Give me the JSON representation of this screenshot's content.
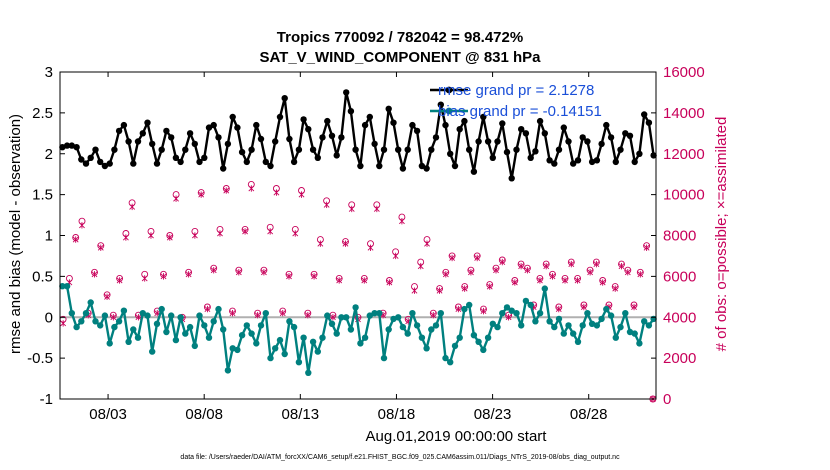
{
  "chart_data": {
    "type": "line",
    "title": "Tropics 770092 / 782042 = 98.472%",
    "subtitle": "SAT_V_WIND_COMPONENT @ 831 hPa",
    "xlabel": "Aug.01,2019 00:00:00 start",
    "ylabel": "rmse and bias (model - observation)",
    "ylabel_right": "# of obs: o=possible; ×=assimilated",
    "footnote": "data file: /Users/raeder/DAI/ATM_forcXX/CAM6_setup/f.e21.FHIST_BGC.f09_025.CAM6assim.011/Diags_NTrS_2019-08/obs_diag_output.nc",
    "x_range_days": [
      0.5,
      31.5
    ],
    "ylim": [
      -1,
      3
    ],
    "ylim_right": [
      0,
      16000
    ],
    "yticks": [
      -1,
      -0.5,
      0,
      0.5,
      1,
      1.5,
      2,
      2.5,
      3
    ],
    "ytick_labels": [
      "-1",
      "-0.5",
      "0",
      "0.5",
      "1",
      "1.5",
      "2",
      "2.5",
      "3"
    ],
    "yticks_right": [
      0,
      2000,
      4000,
      6000,
      8000,
      10000,
      12000,
      14000,
      16000
    ],
    "ytick_labels_right": [
      "0",
      "2000",
      "4000",
      "6000",
      "8000",
      "10000",
      "12000",
      "14000",
      "16000"
    ],
    "xticks_days": [
      3,
      8,
      13,
      18,
      23,
      28
    ],
    "xtick_labels": [
      "08/03",
      "08/08",
      "08/13",
      "08/18",
      "08/23",
      "08/28"
    ],
    "zero_line": 0,
    "colors": {
      "rmse": "#000000",
      "bias": "#00807f",
      "obs": "#c8005a",
      "legend_text": "#1a4fd8",
      "zero_line": "#b0b0b0"
    },
    "legend": [
      {
        "name": "rmse",
        "label": "rmse grand pr = 2.1278"
      },
      {
        "name": "bias",
        "label": "bias grand pr = -0.14151"
      }
    ],
    "obs_count": {
      "name": "obs possible",
      "marker": "o",
      "values": [
        3900,
        5900,
        7900,
        8700,
        4200,
        6200,
        7500,
        5100,
        4100,
        5900,
        8100,
        9600,
        4100,
        6100,
        8200,
        4300,
        6100,
        8000,
        10000,
        4000,
        6200,
        8200,
        10100,
        4500,
        6400,
        8300,
        10300,
        4300,
        6300,
        8300,
        10500,
        4200,
        6300,
        8400,
        10300,
        4300,
        6100,
        8300,
        10200,
        4200,
        6100,
        7800,
        9700,
        4100,
        5900,
        7700,
        9500,
        4000,
        5900,
        7600,
        9500,
        4200,
        5800,
        7200,
        8900,
        3900,
        5500,
        6700,
        7800,
        4200,
        5400,
        6200,
        7000,
        4500,
        5500,
        6300,
        7000,
        4400,
        5600,
        6400,
        6800,
        4100,
        5800,
        6600,
        6400,
        4600,
        5900,
        6600,
        6100,
        4500,
        5900,
        6700,
        5900,
        4600,
        6300,
        6700,
        5800,
        4600,
        5500,
        6600,
        6300,
        4600,
        6200,
        7500,
        0
      ]
    },
    "obs_assim": {
      "name": "obs assimilated",
      "marker": "x",
      "values": [
        3700,
        5700,
        7800,
        8500,
        4100,
        6100,
        7400,
        5000,
        4000,
        5800,
        7900,
        9400,
        4000,
        5900,
        8000,
        4200,
        6000,
        7900,
        9800,
        3900,
        6100,
        8000,
        10000,
        4400,
        6300,
        8100,
        10200,
        4200,
        6200,
        8200,
        10300,
        4100,
        6200,
        8200,
        10100,
        4200,
        6000,
        8100,
        10000,
        4100,
        6000,
        7600,
        9500,
        4000,
        5800,
        7600,
        9300,
        3900,
        5800,
        7400,
        9300,
        4100,
        5700,
        7000,
        8700,
        3800,
        5300,
        6500,
        7600,
        4100,
        5300,
        6100,
        6900,
        4400,
        5400,
        6200,
        6900,
        4300,
        5500,
        6300,
        6700,
        4000,
        5700,
        6500,
        6300,
        4500,
        5800,
        6500,
        6000,
        4400,
        5800,
        6600,
        5800,
        4500,
        6200,
        6600,
        5700,
        4500,
        5400,
        6500,
        6200,
        4500,
        6100,
        7400,
        0
      ]
    },
    "rmse": [
      2.08,
      2.1,
      2.1,
      2.08,
      1.93,
      1.88,
      1.95,
      2.05,
      1.9,
      1.85,
      1.88,
      2.05,
      2.28,
      2.35,
      2.15,
      1.88,
      2.15,
      2.25,
      2.38,
      2.12,
      1.88,
      2.05,
      2.28,
      2.2,
      1.95,
      1.9,
      2.05,
      2.25,
      2.12,
      1.9,
      1.95,
      2.32,
      2.35,
      2.2,
      1.82,
      2.12,
      2.45,
      2.32,
      2.02,
      1.9,
      2.05,
      2.35,
      2.18,
      1.9,
      1.85,
      2.15,
      2.45,
      2.68,
      2.18,
      1.9,
      2.05,
      2.42,
      2.3,
      2.05,
      1.95,
      2.2,
      2.4,
      2.22,
      1.98,
      2.2,
      2.75,
      2.52,
      2.05,
      1.85,
      2.35,
      2.45,
      2.12,
      1.85,
      2.05,
      2.55,
      2.38,
      2.05,
      1.82,
      2.05,
      2.35,
      2.28,
      1.85,
      1.82,
      2.05,
      2.2,
      2.6,
      2.35,
      2.0,
      1.85,
      2.3,
      2.4,
      2.05,
      1.78,
      2.15,
      2.45,
      2.15,
      1.95,
      2.15,
      2.37,
      2.02,
      1.7,
      2.05,
      2.3,
      2.25,
      1.95,
      2.03,
      2.4,
      2.25,
      1.92,
      1.88,
      2.05,
      2.32,
      2.15,
      1.88,
      1.92,
      2.2,
      2.15,
      1.9,
      1.92,
      2.12,
      2.35,
      2.2,
      1.9,
      2.05,
      2.25,
      2.22,
      1.9,
      2.0,
      2.48,
      2.38,
      1.98
    ],
    "bias": [
      0.38,
      0.38,
      0.05,
      -0.12,
      -0.05,
      0.05,
      0.18,
      -0.05,
      -0.1,
      0.02,
      -0.32,
      -0.12,
      -0.05,
      0.08,
      -0.3,
      -0.15,
      -0.25,
      0.05,
      0.02,
      -0.42,
      -0.08,
      0.1,
      -0.18,
      0.02,
      -0.28,
      0.0,
      -0.2,
      -0.12,
      -0.35,
      0.02,
      -0.1,
      -0.25,
      -0.05,
      0.1,
      -0.15,
      -0.65,
      -0.38,
      -0.4,
      -0.22,
      -0.1,
      -0.2,
      -0.32,
      -0.1,
      0.05,
      -0.5,
      -0.38,
      -0.28,
      -0.45,
      -0.05,
      -0.12,
      -0.55,
      -0.25,
      -0.68,
      -0.3,
      -0.42,
      -0.25,
      0.02,
      -0.08,
      -0.2,
      0.0,
      0.0,
      -0.15,
      0.12,
      -0.32,
      -0.25,
      0.02,
      0.05,
      0.05,
      -0.5,
      -0.15,
      -0.02,
      0.0,
      -0.12,
      -0.2,
      0.05,
      -0.1,
      -0.25,
      -0.38,
      -0.15,
      -0.1,
      0.05,
      -0.5,
      -0.55,
      -0.35,
      -0.25,
      0.1,
      0.15,
      -0.22,
      -0.3,
      -0.4,
      -0.25,
      -0.08,
      -0.12,
      0.05,
      0.12,
      0.08,
      0.05,
      -0.1,
      0.2,
      0.15,
      -0.05,
      0.05,
      0.35,
      -0.05,
      -0.12,
      -0.02,
      -0.2,
      -0.1,
      -0.2,
      -0.3,
      -0.1,
      0.05,
      -0.08,
      -0.1,
      -0.02,
      0.1,
      0.02,
      -0.25,
      -0.12,
      0.05,
      -0.18,
      -0.2,
      -0.32,
      -0.05,
      -0.1,
      -0.02
    ]
  }
}
